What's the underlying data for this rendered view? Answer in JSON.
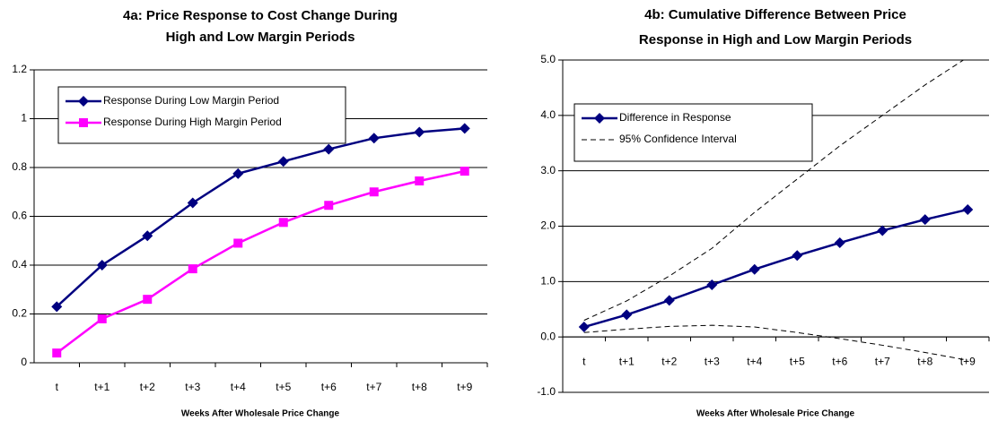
{
  "chart_data": [
    {
      "type": "line",
      "title": [
        "4a: Price Response to Cost Change During",
        "High and Low Margin Periods"
      ],
      "x_label": "Weeks After Wholesale Price Change",
      "categories": [
        "t",
        "t+1",
        "t+2",
        "t+3",
        "t+4",
        "t+5",
        "t+6",
        "t+7",
        "t+8",
        "t+9"
      ],
      "ylim": [
        0,
        1.2
      ],
      "yticks": [
        0,
        0.2,
        0.4,
        0.6,
        0.8,
        1,
        1.2
      ],
      "grid": true,
      "series": [
        {
          "name": "Response During Low Margin Period",
          "color": "#000080",
          "marker": "diamond",
          "values": [
            0.23,
            0.4,
            0.52,
            0.655,
            0.775,
            0.825,
            0.875,
            0.92,
            0.945,
            0.96
          ]
        },
        {
          "name": "Response During High Margin Period",
          "color": "#ff00ff",
          "marker": "square",
          "values": [
            0.04,
            0.18,
            0.26,
            0.385,
            0.49,
            0.575,
            0.645,
            0.7,
            0.745,
            0.785
          ]
        }
      ]
    },
    {
      "type": "line",
      "title": [
        "4b: Cumulative Difference Between Price",
        "Response in High and Low Margin Periods"
      ],
      "x_label": "Weeks After Wholesale Price Change",
      "categories": [
        "t",
        "t+1",
        "t+2",
        "t+3",
        "t+4",
        "t+5",
        "t+6",
        "t+7",
        "t+8",
        "t+9"
      ],
      "ylim": [
        -1,
        5
      ],
      "yticks": [
        {
          "value": -1,
          "label": "-1.0"
        },
        {
          "value": 0,
          "label": "0.0"
        },
        {
          "value": 1,
          "label": "1.0"
        },
        {
          "value": 2,
          "label": "2.0"
        },
        {
          "value": 3,
          "label": "3.0"
        },
        {
          "value": 4,
          "label": "4.0"
        },
        {
          "value": 5,
          "label": "5.0"
        }
      ],
      "grid": true,
      "series": [
        {
          "name": "Difference in Response",
          "color": "#000080",
          "marker": "diamond",
          "values": [
            0.18,
            0.4,
            0.66,
            0.94,
            1.22,
            1.47,
            1.7,
            1.92,
            2.12,
            2.3
          ]
        },
        {
          "name": "95% Confidence Interval",
          "color": "#000000",
          "dashed": true,
          "upper": [
            0.3,
            0.65,
            1.1,
            1.6,
            2.25,
            2.85,
            3.45,
            4.0,
            4.55,
            5.05
          ],
          "lower": [
            0.08,
            0.14,
            0.19,
            0.21,
            0.18,
            0.08,
            -0.03,
            -0.15,
            -0.28,
            -0.42
          ]
        }
      ]
    }
  ]
}
